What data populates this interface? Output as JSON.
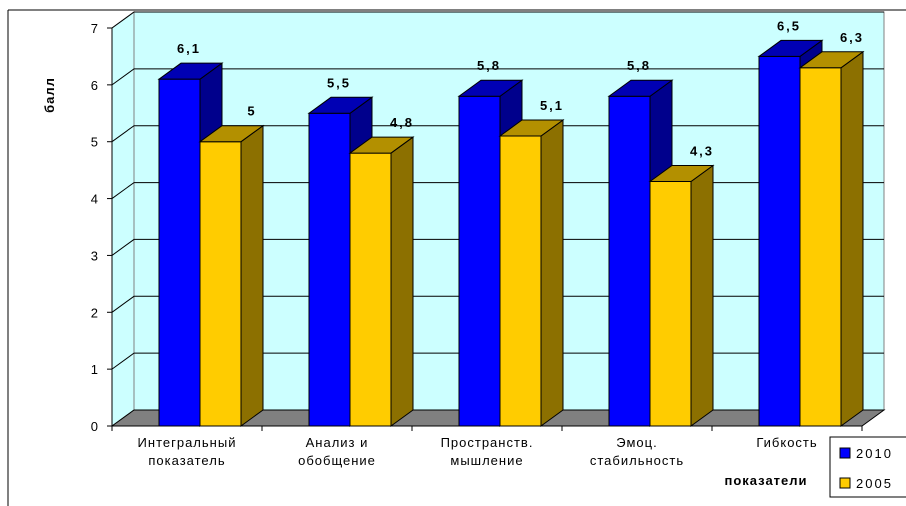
{
  "chart_data": {
    "type": "bar",
    "categories": [
      [
        "Интегральный",
        "показатель"
      ],
      [
        "Анализ и",
        "обобщение"
      ],
      [
        "Пространств.",
        "мышление"
      ],
      [
        "Эмоц.",
        "стабильность"
      ],
      [
        "Гибкость"
      ]
    ],
    "series": [
      {
        "name": "2010",
        "values": [
          6.1,
          5.5,
          5.8,
          5.8,
          6.5
        ],
        "labels": [
          "6,1",
          "5,5",
          "5,8",
          "5,8",
          "6,5"
        ]
      },
      {
        "name": "2005",
        "values": [
          5.0,
          4.8,
          5.1,
          4.3,
          6.3
        ],
        "labels": [
          "5",
          "4,8",
          "5,1",
          "4,3",
          "6,3"
        ]
      }
    ],
    "xlabel": "показатели",
    "ylabel": "балл",
    "ylim": [
      0,
      7
    ],
    "yticks": [
      "0",
      "1",
      "2",
      "3",
      "4",
      "5",
      "6",
      "7"
    ],
    "grid": true,
    "legend": "bottom-right",
    "colors": {
      "plot_area": "#ccffff",
      "floor": "#808080",
      "series_2010_front": "#0000ff",
      "series_2010_side": "#00008c",
      "series_2010_top": "#0000b4",
      "series_2005_front": "#ffcc00",
      "series_2005_side": "#8c7000",
      "series_2005_top": "#b39000"
    }
  }
}
